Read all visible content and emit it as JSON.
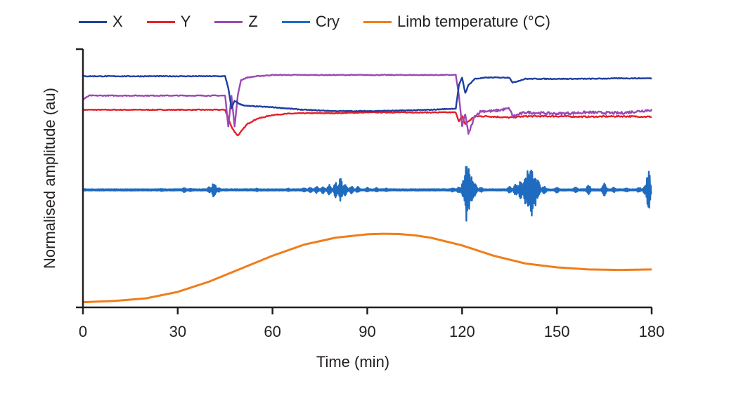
{
  "chart_data": {
    "type": "line",
    "xlabel": "Time (min)",
    "ylabel": "Normalised amplitude (au)",
    "xlim": [
      0,
      180
    ],
    "x_ticks": [
      0,
      30,
      60,
      90,
      120,
      150,
      180
    ],
    "grid": false,
    "legend_position": "top",
    "y_units": "normalised, relative level (0 = bottom axis, 1 = top of axis)",
    "series": [
      {
        "name": "X",
        "color": "#1f3f9e",
        "x": [
          0,
          45,
          46,
          47,
          48,
          50,
          52,
          60,
          70,
          80,
          90,
          100,
          110,
          118,
          119,
          120,
          121,
          122,
          124,
          128,
          135,
          136,
          140,
          150,
          160,
          170,
          180
        ],
        "y": [
          0.895,
          0.895,
          0.85,
          0.77,
          0.8,
          0.785,
          0.78,
          0.775,
          0.765,
          0.76,
          0.76,
          0.762,
          0.765,
          0.77,
          0.86,
          0.89,
          0.83,
          0.86,
          0.885,
          0.89,
          0.89,
          0.87,
          0.885,
          0.885,
          0.885,
          0.887,
          0.887
        ]
      },
      {
        "name": "Y",
        "color": "#e4202a",
        "x": [
          0,
          40,
          45,
          46,
          47,
          48,
          49,
          50,
          52,
          55,
          60,
          65,
          70,
          80,
          90,
          100,
          110,
          118,
          119,
          120,
          121,
          122,
          124,
          128,
          135,
          140,
          150,
          160,
          170,
          180
        ],
        "y": [
          0.765,
          0.765,
          0.765,
          0.73,
          0.7,
          0.68,
          0.665,
          0.68,
          0.71,
          0.73,
          0.745,
          0.75,
          0.752,
          0.752,
          0.755,
          0.755,
          0.755,
          0.755,
          0.72,
          0.74,
          0.71,
          0.72,
          0.74,
          0.74,
          0.735,
          0.74,
          0.74,
          0.738,
          0.74,
          0.738
        ]
      },
      {
        "name": "Z",
        "color": "#9b49b4",
        "x": [
          0,
          2,
          40,
          44,
          45,
          46,
          47,
          48,
          49,
          50,
          52,
          55,
          60,
          70,
          80,
          90,
          100,
          110,
          118,
          119,
          120,
          121,
          122,
          124,
          126,
          130,
          135,
          136,
          140,
          150,
          160,
          170,
          180
        ],
        "y": [
          0.805,
          0.82,
          0.82,
          0.82,
          0.82,
          0.7,
          0.82,
          0.7,
          0.82,
          0.88,
          0.89,
          0.895,
          0.9,
          0.9,
          0.9,
          0.9,
          0.9,
          0.9,
          0.9,
          0.82,
          0.7,
          0.75,
          0.67,
          0.74,
          0.76,
          0.76,
          0.77,
          0.74,
          0.755,
          0.75,
          0.755,
          0.752,
          0.765
        ]
      },
      {
        "name": "Cry",
        "color": "#1f6bbf",
        "baseline": 0.455,
        "x": [
          0,
          180
        ],
        "y": [
          0.455,
          0.455
        ],
        "bursts": [
          {
            "t": 25,
            "a": 0.005
          },
          {
            "t": 32,
            "a": 0.01
          },
          {
            "t": 34,
            "a": 0.006
          },
          {
            "t": 40,
            "a": 0.012
          },
          {
            "t": 41.5,
            "a": 0.03
          },
          {
            "t": 43,
            "a": 0.008
          },
          {
            "t": 55,
            "a": 0.006
          },
          {
            "t": 65,
            "a": 0.006
          },
          {
            "t": 70,
            "a": 0.008
          },
          {
            "t": 72,
            "a": 0.01
          },
          {
            "t": 74,
            "a": 0.012
          },
          {
            "t": 76,
            "a": 0.014
          },
          {
            "t": 78,
            "a": 0.02
          },
          {
            "t": 80,
            "a": 0.03
          },
          {
            "t": 81.5,
            "a": 0.045
          },
          {
            "t": 83,
            "a": 0.025
          },
          {
            "t": 85,
            "a": 0.015
          },
          {
            "t": 87,
            "a": 0.012
          },
          {
            "t": 90,
            "a": 0.01
          },
          {
            "t": 93,
            "a": 0.008
          },
          {
            "t": 96,
            "a": 0.006
          },
          {
            "t": 117,
            "a": 0.008
          },
          {
            "t": 119,
            "a": 0.012
          },
          {
            "t": 120.5,
            "a": 0.04
          },
          {
            "t": 121.5,
            "a": 0.13
          },
          {
            "t": 122,
            "a": 0.09
          },
          {
            "t": 123,
            "a": 0.06
          },
          {
            "t": 124,
            "a": 0.03
          },
          {
            "t": 126,
            "a": 0.01
          },
          {
            "t": 135,
            "a": 0.012
          },
          {
            "t": 137,
            "a": 0.025
          },
          {
            "t": 138.5,
            "a": 0.035
          },
          {
            "t": 140,
            "a": 0.06
          },
          {
            "t": 141,
            "a": 0.09
          },
          {
            "t": 142,
            "a": 0.11
          },
          {
            "t": 143,
            "a": 0.07
          },
          {
            "t": 144,
            "a": 0.04
          },
          {
            "t": 146,
            "a": 0.015
          },
          {
            "t": 150,
            "a": 0.012
          },
          {
            "t": 156,
            "a": 0.012
          },
          {
            "t": 160,
            "a": 0.02
          },
          {
            "t": 165,
            "a": 0.025
          },
          {
            "t": 168,
            "a": 0.01
          },
          {
            "t": 172,
            "a": 0.008
          },
          {
            "t": 176,
            "a": 0.01
          },
          {
            "t": 178,
            "a": 0.02
          },
          {
            "t": 179,
            "a": 0.08
          },
          {
            "t": 179.6,
            "a": 0.03
          }
        ]
      },
      {
        "name": "Limb temperature (°C)",
        "color": "#f07d1a",
        "x": [
          0,
          10,
          20,
          30,
          40,
          50,
          60,
          70,
          80,
          90,
          95,
          100,
          105,
          110,
          120,
          130,
          140,
          150,
          160,
          170,
          180
        ],
        "y": [
          0.02,
          0.025,
          0.035,
          0.06,
          0.1,
          0.15,
          0.2,
          0.243,
          0.27,
          0.283,
          0.285,
          0.284,
          0.279,
          0.27,
          0.24,
          0.2,
          0.17,
          0.155,
          0.147,
          0.145,
          0.147
        ]
      }
    ]
  }
}
